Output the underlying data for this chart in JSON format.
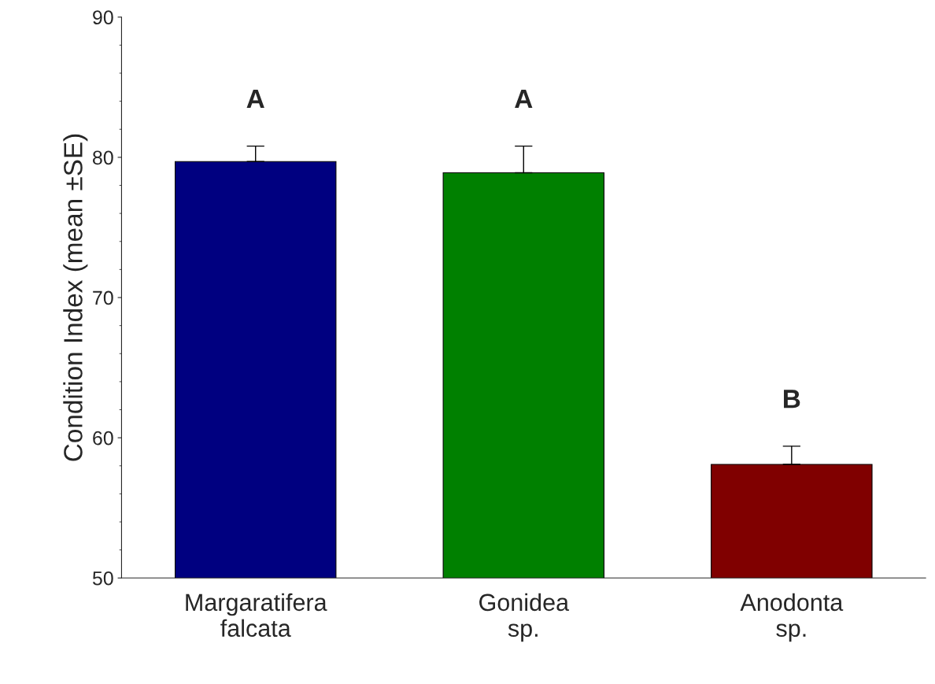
{
  "chart_data": {
    "type": "bar",
    "ylabel": "Condition Index (mean ±SE)",
    "categories": [
      "Margaratifera\nfalcata",
      "Gonidea\nsp.",
      "Anodonta\nsp."
    ],
    "values": [
      79.7,
      78.9,
      58.1
    ],
    "errors": [
      1.1,
      1.9,
      1.3
    ],
    "colors": [
      "#000080",
      "#008000",
      "#800000"
    ],
    "ylim": [
      50,
      90
    ],
    "yticks": [
      50,
      60,
      70,
      80,
      90
    ],
    "grid": false,
    "legend": false,
    "annotations": [
      "A",
      "A",
      "B"
    ]
  }
}
